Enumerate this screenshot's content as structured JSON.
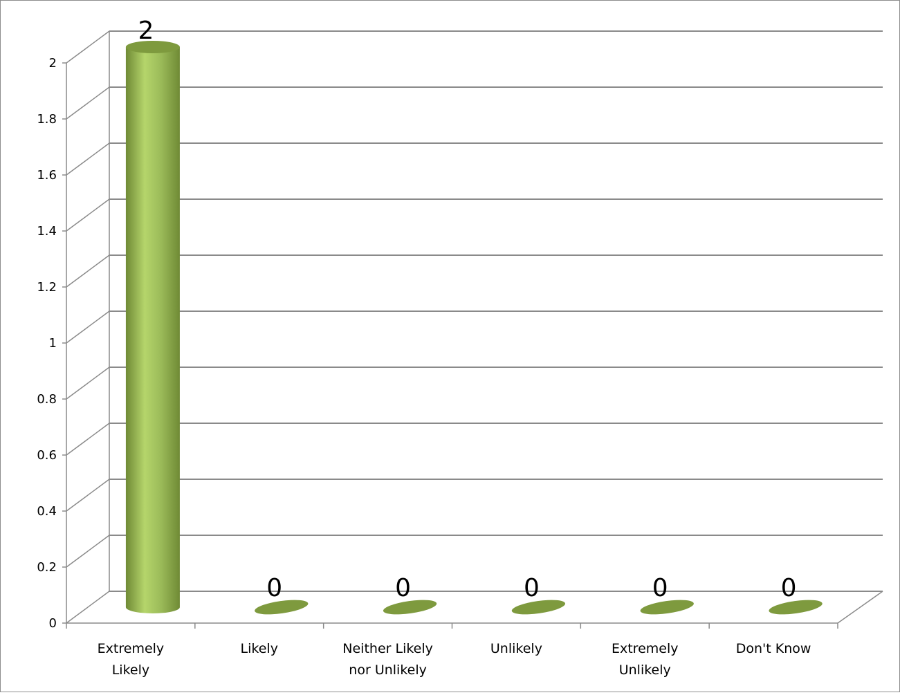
{
  "chart_data": {
    "type": "bar",
    "style": "3d-cylinder",
    "categories": [
      [
        "Extremely",
        "Likely"
      ],
      [
        "Likely"
      ],
      [
        "Neither Likely",
        "nor Unlikely"
      ],
      [
        "Unlikely"
      ],
      [
        "Extremely",
        "Unlikely"
      ],
      [
        "Don't Know"
      ]
    ],
    "values": [
      2,
      0,
      0,
      0,
      0,
      0
    ],
    "data_labels": [
      "2",
      "0",
      "0",
      "0",
      "0",
      "0"
    ],
    "y_ticks": [
      "0",
      "0.2",
      "0.4",
      "0.6",
      "0.8",
      "1",
      "1.2",
      "1.4",
      "1.6",
      "1.8",
      "2"
    ],
    "ylim": [
      0,
      2
    ],
    "grid": true,
    "legend": "none",
    "title": "",
    "xlabel": "",
    "ylabel": "",
    "colors": {
      "bar_light": "#b5d56b",
      "bar_mid": "#9bbb59",
      "bar_dark": "#6f8a35",
      "bar_top": "#7e9a3e",
      "grid": "#8a8a8a",
      "axis": "#8a8a8a"
    }
  }
}
